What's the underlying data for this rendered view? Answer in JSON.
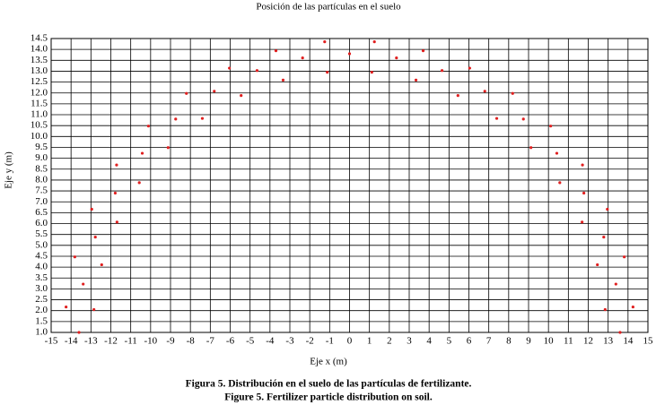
{
  "chart_data": {
    "type": "scatter",
    "title": "Posición de las partículas en el suelo",
    "xlabel": "Eje x (m)",
    "ylabel": "Eje y (m)",
    "caption": [
      "Figura 5. Distribución en el suelo de las partículas de fertilizante.",
      "Figure 5. Fertilizer particle distribution on soil."
    ],
    "color": "#e02020",
    "grid": true,
    "xlim": [
      -15,
      15
    ],
    "ylim": [
      1,
      14.5
    ],
    "xticks": [
      -15,
      -14,
      -13,
      -12,
      -11,
      -10,
      -9,
      -8,
      -7,
      -6,
      -5,
      -4,
      -3,
      -2,
      -1,
      0,
      1,
      2,
      3,
      4,
      5,
      6,
      7,
      8,
      9,
      10,
      11,
      12,
      13,
      14,
      15
    ],
    "yticks": [
      {
        "value": 1,
        "label": "1.0"
      },
      1.5,
      {
        "value": 2,
        "label": "2.0"
      },
      2.5,
      {
        "value": 3,
        "label": "3.0"
      },
      3.5,
      {
        "value": 4,
        "label": "4.0"
      },
      4.5,
      {
        "value": 5,
        "label": "5.0"
      },
      5.5,
      {
        "value": 6,
        "label": "6.0"
      },
      6.5,
      {
        "value": 7,
        "label": "7.0"
      },
      7.5,
      {
        "value": 8,
        "label": "8.0"
      },
      8.5,
      {
        "value": 9,
        "label": "9.0"
      },
      9.5,
      {
        "value": 10,
        "label": "10.0"
      },
      10.5,
      {
        "value": 11,
        "label": "11.0"
      },
      11.5,
      {
        "value": 12,
        "label": "12.0"
      },
      12.5,
      {
        "value": 13,
        "label": "13.0"
      },
      13.5,
      {
        "value": 14,
        "label": "14.0"
      },
      14.5
    ],
    "x": [
      14.25,
      13.81,
      12.96,
      11.71,
      10.11,
      8.2,
      6.04,
      3.7,
      1.25,
      -1.25,
      -3.7,
      -6.04,
      -8.2,
      -10.11,
      -11.71,
      -12.96,
      -13.81,
      -14.25,
      12.85,
      12.46,
      11.69,
      10.57,
      9.12,
      7.4,
      5.45,
      3.34,
      1.12,
      -1.12,
      -3.34,
      -5.45,
      -7.4,
      -9.12,
      -10.57,
      -11.69,
      -12.46,
      -12.85,
      13.6,
      13.39,
      12.78,
      11.78,
      10.42,
      8.74,
      6.8,
      4.65,
      2.36,
      0,
      -2.36,
      -4.65,
      -6.8,
      -8.74,
      -10.42,
      -11.78,
      -12.78,
      -13.39,
      -13.6
    ],
    "y": [
      2.17,
      4.47,
      6.66,
      8.69,
      10.48,
      11.98,
      13.14,
      13.94,
      14.35,
      14.35,
      13.94,
      13.14,
      11.98,
      10.48,
      8.69,
      6.66,
      4.47,
      2.17,
      2.05,
      4.11,
      6.07,
      7.88,
      9.49,
      10.83,
      11.88,
      12.59,
      12.95,
      12.95,
      12.59,
      11.88,
      10.83,
      9.49,
      7.88,
      6.07,
      4.11,
      2.05,
      1.0,
      3.22,
      5.38,
      7.4,
      9.23,
      10.8,
      12.08,
      13.03,
      13.61,
      13.8,
      13.61,
      13.03,
      12.08,
      10.8,
      9.23,
      7.4,
      5.38,
      3.22,
      1.0
    ]
  }
}
